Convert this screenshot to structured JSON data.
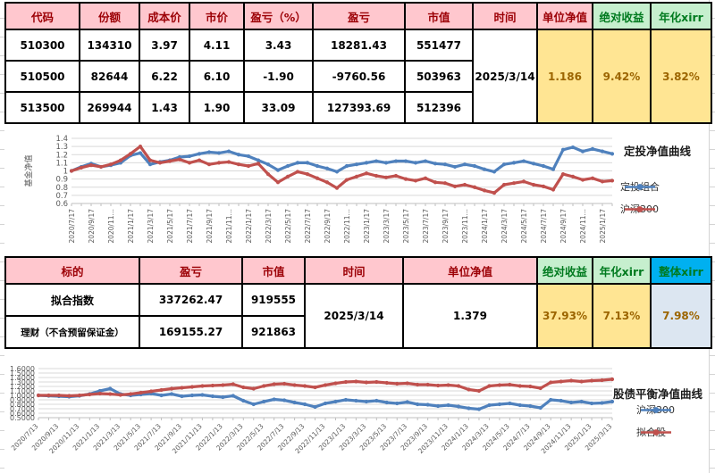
{
  "colors": {
    "pink-bg": "#FFC7CE",
    "pink-text": "#9C0006",
    "green-bg": "#C6EFCE",
    "green-text": "#007A1F",
    "gold-bg": "#FFE593",
    "gold-text": "#9C6500",
    "cyan-bg": "#00B0F0",
    "lblue-bg": "#DCE6F1",
    "blue-line": "#4F81BD",
    "red-line": "#C0504D"
  },
  "table1": {
    "headers": [
      "代码",
      "份额",
      "成本价",
      "市价",
      "盈亏（%）",
      "盈亏",
      "市值",
      "时间",
      "单位净值",
      "绝对收益",
      "年化xirr"
    ],
    "rows": [
      [
        "510300",
        "134310",
        "3.97",
        "4.11",
        "3.43",
        "18281.43",
        "551477"
      ],
      [
        "510500",
        "82644",
        "6.22",
        "6.10",
        "-1.90",
        "-9760.56",
        "503963"
      ],
      [
        "513500",
        "269944",
        "1.43",
        "1.90",
        "33.09",
        "127393.69",
        "512396"
      ]
    ],
    "merged": {
      "time": "2025/3/14",
      "nav": "1.186",
      "abs_return": "9.42%",
      "xirr": "3.82%"
    }
  },
  "table2": {
    "headers": [
      "标的",
      "盈亏",
      "市值",
      "时间",
      "单位净值",
      "绝对收益",
      "年化xirr",
      "整体xirr"
    ],
    "rows": [
      [
        "拟合指数",
        "337262.47",
        "919555"
      ],
      [
        "理财（不含预留保证金）",
        "169155.27",
        "921863"
      ]
    ],
    "merged": {
      "time": "2025/3/14",
      "nav": "1.379",
      "abs_return": "37.93%",
      "xirr": "7.13%",
      "overall_xirr": "7.98%"
    }
  },
  "chart_data": [
    {
      "type": "line",
      "title": "定投净值曲线",
      "ylabel": "基金净值",
      "ylim": [
        0.6,
        1.4
      ],
      "grid": true,
      "legend_position": "right",
      "yticks": [
        "1.4",
        "1.3",
        "1.2",
        "1.1",
        "1",
        "0.9",
        "0.8",
        "0.7",
        "0.6"
      ],
      "xticks": [
        "2020/7/17",
        "2020/9/17",
        "2020/11…",
        "2021/1/17",
        "2021/3/17",
        "2021/5/17",
        "2021/7/17",
        "2021/9/17",
        "2021/11…",
        "2022/1/17",
        "2022/3/17",
        "2022/5/17",
        "2022/7/17",
        "2022/9/17",
        "2022/11…",
        "2023/1/17",
        "2023/3/17",
        "2023/5/17",
        "2023/7/17",
        "2023/9/17",
        "2023/11…",
        "2024/1/17",
        "2024/3/17",
        "2024/5/17",
        "2024/7/17",
        "2024/9/17",
        "2024/11…",
        "2025/1/17"
      ],
      "series": [
        {
          "name": "定投组合",
          "color": "#4F81BD",
          "values": [
            1.0,
            1.05,
            1.09,
            1.05,
            1.07,
            1.1,
            1.19,
            1.22,
            1.08,
            1.11,
            1.13,
            1.17,
            1.18,
            1.21,
            1.23,
            1.22,
            1.24,
            1.2,
            1.18,
            1.13,
            1.08,
            1.01,
            1.06,
            1.1,
            1.1,
            1.06,
            1.03,
            0.99,
            1.06,
            1.08,
            1.1,
            1.12,
            1.1,
            1.12,
            1.12,
            1.1,
            1.12,
            1.09,
            1.08,
            1.05,
            1.08,
            1.06,
            1.02,
            0.99,
            1.08,
            1.1,
            1.12,
            1.09,
            1.06,
            1.02,
            1.26,
            1.29,
            1.24,
            1.27,
            1.24,
            1.21
          ]
        },
        {
          "name": "沪深300",
          "color": "#C0504D",
          "values": [
            1.0,
            1.04,
            1.07,
            1.05,
            1.08,
            1.13,
            1.21,
            1.3,
            1.13,
            1.1,
            1.12,
            1.14,
            1.1,
            1.13,
            1.08,
            1.1,
            1.11,
            1.08,
            1.06,
            1.09,
            0.96,
            0.86,
            0.93,
            0.99,
            0.96,
            0.91,
            0.86,
            0.79,
            0.89,
            0.93,
            0.97,
            0.94,
            0.92,
            0.94,
            0.9,
            0.88,
            0.91,
            0.86,
            0.85,
            0.81,
            0.83,
            0.8,
            0.76,
            0.73,
            0.83,
            0.85,
            0.87,
            0.83,
            0.81,
            0.77,
            0.96,
            0.93,
            0.89,
            0.91,
            0.87,
            0.88
          ]
        }
      ]
    },
    {
      "type": "line",
      "title": "股债平衡净值曲线",
      "ylabel": "",
      "ylim": [
        0.5,
        1.6
      ],
      "grid": true,
      "legend_position": "right",
      "yticks": [
        "1.6000",
        "1.5000",
        "1.4000",
        "1.3000",
        "1.2000",
        "1.1000",
        "1.0000",
        "0.9000",
        "0.8000",
        "0.7000",
        "0.6000",
        "0.5000"
      ],
      "xticks": [
        "2020/7/13",
        "2020/9/13",
        "2020/11/13",
        "2021/1/13",
        "2021/3/13",
        "2021/5/13",
        "2021/7/13",
        "2021/9/13",
        "2021/11/13",
        "2022/1/13",
        "2022/3/13",
        "2022/5/13",
        "2022/7/13",
        "2022/9/13",
        "2022/11/13",
        "2023/1/13",
        "2023/3/13",
        "2023/5/13",
        "2023/7/13",
        "2023/9/13",
        "2023/11/13",
        "2024/1/13",
        "2024/3/13",
        "2024/5/13",
        "2024/7/13",
        "2024/9/13",
        "2024/11/13",
        "2025/1/13",
        "2025/3/13"
      ],
      "series": [
        {
          "name": "沪深300",
          "color": "#4F81BD",
          "values": [
            1.0,
            0.99,
            0.98,
            0.97,
            0.99,
            1.03,
            1.1,
            1.15,
            1.03,
            1.0,
            1.02,
            1.04,
            1.0,
            1.03,
            0.98,
            1.0,
            1.01,
            0.98,
            0.96,
            0.99,
            0.88,
            0.8,
            0.86,
            0.91,
            0.89,
            0.84,
            0.8,
            0.74,
            0.82,
            0.86,
            0.9,
            0.88,
            0.86,
            0.88,
            0.84,
            0.82,
            0.85,
            0.8,
            0.79,
            0.76,
            0.78,
            0.75,
            0.71,
            0.69,
            0.78,
            0.8,
            0.82,
            0.78,
            0.76,
            0.72,
            0.9,
            0.88,
            0.84,
            0.86,
            0.82,
            0.83,
            0.86
          ]
        },
        {
          "name": "拟合股",
          "color": "#C0504D",
          "values": [
            1.0,
            1.0,
            1.0,
            0.99,
            1.0,
            1.02,
            1.04,
            1.03,
            1.01,
            1.03,
            1.06,
            1.09,
            1.12,
            1.15,
            1.17,
            1.19,
            1.21,
            1.22,
            1.23,
            1.25,
            1.18,
            1.15,
            1.21,
            1.25,
            1.26,
            1.23,
            1.21,
            1.18,
            1.23,
            1.27,
            1.3,
            1.31,
            1.29,
            1.3,
            1.28,
            1.26,
            1.27,
            1.24,
            1.24,
            1.22,
            1.23,
            1.21,
            1.13,
            1.1,
            1.21,
            1.23,
            1.24,
            1.21,
            1.2,
            1.16,
            1.29,
            1.31,
            1.33,
            1.31,
            1.33,
            1.34,
            1.36
          ]
        }
      ]
    }
  ]
}
